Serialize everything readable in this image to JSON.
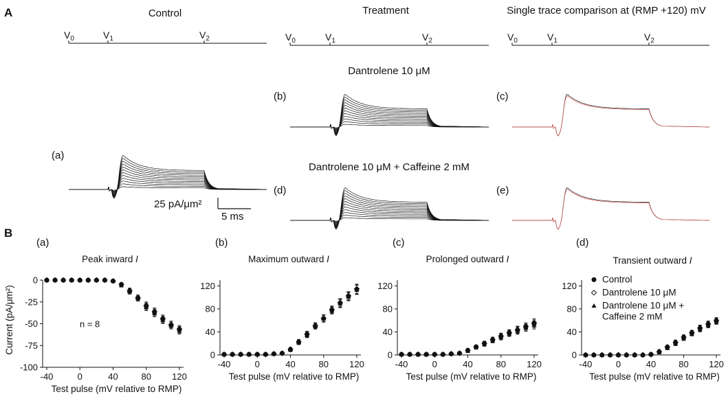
{
  "panel_labels": {
    "A": "A",
    "B": "B"
  },
  "titles": {
    "control": "Control",
    "treatment": "Treatment",
    "comparison": "Single trace comparison at (RMP +120) mV"
  },
  "conditions": {
    "dantrolene": "Dantrolene 10 μM",
    "dantrolene_caffeine": "Dantrolene 10 μM + Caffeine 2 mM"
  },
  "subpanel_tags_A": [
    "(a)",
    "(b)",
    "(c)",
    "(d)",
    "(e)"
  ],
  "protocol": {
    "v0": {
      "main": "V",
      "sub": "0"
    },
    "v1": {
      "main": "V",
      "sub": "1"
    },
    "v2": {
      "main": "V",
      "sub": "2"
    }
  },
  "scale_bar": {
    "current_label": "25 pA/μm²",
    "time_label": "5 ms"
  },
  "colors": {
    "trace": "#111111",
    "overlay": "#d9534f",
    "axis": "#111111"
  },
  "chart_data": [
    {
      "type": "scatter",
      "tag": "(a)",
      "title": "Peak inward",
      "title_var": "I",
      "xlabel": "Test pulse (mV relative to RMP)",
      "ylabel": "Current (pA/μm²)",
      "xlim": [
        -45,
        125
      ],
      "ylim": [
        -100,
        0
      ],
      "xticks": [
        -40,
        0,
        40,
        80,
        120
      ],
      "yticks": [
        0,
        -25,
        -50,
        -75,
        -100
      ],
      "annotation": "n = 8",
      "series": [
        {
          "name": "Control",
          "marker": "circle",
          "x": [
            -40,
            -30,
            -20,
            -10,
            0,
            10,
            20,
            30,
            40,
            50,
            60,
            70,
            80,
            90,
            100,
            110,
            120
          ],
          "y": [
            0,
            0,
            0,
            0,
            0,
            0,
            0,
            0,
            -1,
            -5,
            -13,
            -21,
            -30,
            -37,
            -45,
            -52,
            -57
          ],
          "err": [
            0.5,
            0.5,
            0.5,
            0.5,
            0.5,
            0.5,
            0.5,
            0.5,
            1,
            2,
            3,
            3,
            4,
            4,
            4,
            4,
            4
          ]
        },
        {
          "name": "Dantrolene 10 μM",
          "marker": "diamond",
          "x": [
            -40,
            -30,
            -20,
            -10,
            0,
            10,
            20,
            30,
            40,
            50,
            60,
            70,
            80,
            90,
            100,
            110,
            120
          ],
          "y": [
            0,
            0,
            0,
            0,
            0,
            0,
            0,
            0,
            -1,
            -5,
            -12,
            -20,
            -29,
            -36,
            -44,
            -51,
            -56
          ],
          "err": [
            0.5,
            0.5,
            0.5,
            0.5,
            0.5,
            0.5,
            0.5,
            0.5,
            1,
            2,
            3,
            3,
            4,
            4,
            4,
            4,
            4
          ]
        },
        {
          "name": "Dantrolene 10 μM + Caffeine 2 mM",
          "marker": "triangle",
          "x": [
            -40,
            -30,
            -20,
            -10,
            0,
            10,
            20,
            30,
            40,
            50,
            60,
            70,
            80,
            90,
            100,
            110,
            120
          ],
          "y": [
            0,
            0,
            0,
            0,
            0,
            0,
            0,
            0,
            -1,
            -6,
            -13,
            -21,
            -31,
            -38,
            -46,
            -52,
            -58
          ],
          "err": [
            0.5,
            0.5,
            0.5,
            0.5,
            0.5,
            0.5,
            0.5,
            0.5,
            1,
            2,
            3,
            3,
            4,
            4,
            4,
            4,
            4
          ]
        }
      ]
    },
    {
      "type": "scatter",
      "tag": "(b)",
      "title": "Maximum outward",
      "title_var": "I",
      "xlabel": "Test pulse (mV relative to RMP)",
      "ylabel": "",
      "xlim": [
        -45,
        125
      ],
      "ylim": [
        0,
        130
      ],
      "xticks": [
        -40,
        0,
        40,
        80,
        120
      ],
      "yticks": [
        0,
        40,
        80,
        120
      ],
      "series": [
        {
          "name": "Control",
          "marker": "circle",
          "x": [
            -40,
            -30,
            -20,
            -10,
            0,
            10,
            20,
            30,
            40,
            50,
            60,
            70,
            80,
            90,
            100,
            110,
            120
          ],
          "y": [
            1,
            1,
            1,
            1,
            1,
            1,
            2,
            3,
            9,
            22,
            36,
            50,
            63,
            78,
            90,
            102,
            114
          ],
          "err": [
            1,
            1,
            1,
            1,
            1,
            1,
            1,
            2,
            3,
            4,
            5,
            5,
            6,
            6,
            7,
            7,
            8
          ]
        },
        {
          "name": "Dantrolene 10 μM",
          "marker": "diamond",
          "x": [
            -40,
            -30,
            -20,
            -10,
            0,
            10,
            20,
            30,
            40,
            50,
            60,
            70,
            80,
            90,
            100,
            110,
            120
          ],
          "y": [
            1,
            1,
            1,
            1,
            1,
            1,
            2,
            3,
            10,
            23,
            36,
            51,
            64,
            79,
            91,
            103,
            115
          ],
          "err": [
            1,
            1,
            1,
            1,
            1,
            1,
            1,
            2,
            3,
            4,
            5,
            5,
            6,
            6,
            7,
            7,
            8
          ]
        },
        {
          "name": "Dantrolene 10 μM + Caffeine 2 mM",
          "marker": "triangle",
          "x": [
            -40,
            -30,
            -20,
            -10,
            0,
            10,
            20,
            30,
            40,
            50,
            60,
            70,
            80,
            90,
            100,
            110,
            120
          ],
          "y": [
            1,
            1,
            1,
            1,
            1,
            1,
            2,
            3,
            9,
            22,
            35,
            50,
            63,
            77,
            89,
            101,
            113
          ],
          "err": [
            1,
            1,
            1,
            1,
            1,
            1,
            1,
            2,
            3,
            4,
            5,
            5,
            6,
            6,
            7,
            7,
            8
          ]
        }
      ]
    },
    {
      "type": "scatter",
      "tag": "(c)",
      "title": "Prolonged outward",
      "title_var": "I",
      "xlabel": "Test pulse (mV relative to RMP)",
      "ylabel": "",
      "xlim": [
        -45,
        125
      ],
      "ylim": [
        0,
        130
      ],
      "xticks": [
        -40,
        0,
        40,
        80,
        120
      ],
      "yticks": [
        0,
        40,
        80,
        120
      ],
      "series": [
        {
          "name": "Control",
          "marker": "circle",
          "x": [
            -40,
            -30,
            -20,
            -10,
            0,
            10,
            20,
            30,
            40,
            50,
            60,
            70,
            80,
            90,
            100,
            110,
            120
          ],
          "y": [
            1,
            1,
            1,
            1,
            1,
            1,
            2,
            3,
            8,
            14,
            20,
            26,
            32,
            38,
            43,
            48,
            54
          ],
          "err": [
            1,
            1,
            1,
            1,
            1,
            1,
            1,
            2,
            3,
            3,
            4,
            4,
            5,
            5,
            6,
            6,
            7
          ]
        },
        {
          "name": "Dantrolene 10 μM",
          "marker": "diamond",
          "x": [
            -40,
            -30,
            -20,
            -10,
            0,
            10,
            20,
            30,
            40,
            50,
            60,
            70,
            80,
            90,
            100,
            110,
            120
          ],
          "y": [
            1,
            1,
            1,
            1,
            1,
            1,
            2,
            3,
            8,
            14,
            20,
            27,
            33,
            39,
            44,
            50,
            56
          ],
          "err": [
            1,
            1,
            1,
            1,
            1,
            1,
            1,
            2,
            3,
            3,
            4,
            4,
            5,
            5,
            6,
            6,
            7
          ]
        },
        {
          "name": "Dantrolene 10 μM + Caffeine 2 mM",
          "marker": "triangle",
          "x": [
            -40,
            -30,
            -20,
            -10,
            0,
            10,
            20,
            30,
            40,
            50,
            60,
            70,
            80,
            90,
            100,
            110,
            120
          ],
          "y": [
            1,
            1,
            1,
            1,
            1,
            1,
            2,
            3,
            7,
            13,
            19,
            25,
            31,
            37,
            42,
            47,
            52
          ],
          "err": [
            1,
            1,
            1,
            1,
            1,
            1,
            1,
            2,
            3,
            3,
            4,
            4,
            5,
            5,
            6,
            6,
            7
          ]
        }
      ]
    },
    {
      "type": "scatter",
      "tag": "(d)",
      "title": "Transient outward",
      "title_var": "I",
      "xlabel": "Test pulse (mV relative to RMP)",
      "ylabel": "",
      "xlim": [
        -45,
        125
      ],
      "ylim": [
        0,
        130
      ],
      "xticks": [
        -40,
        0,
        40,
        80,
        120
      ],
      "yticks": [
        0,
        40,
        80,
        120
      ],
      "legend": {
        "placement": "top-left",
        "entries": [
          {
            "marker": "circle",
            "lines": [
              "Control"
            ]
          },
          {
            "marker": "diamond",
            "lines": [
              "Dantrolene 10 μM"
            ]
          },
          {
            "marker": "triangle",
            "lines": [
              "Dantrolene 10 μM +",
              "Caffeine 2 mM"
            ]
          }
        ]
      },
      "series": [
        {
          "name": "Control",
          "marker": "circle",
          "x": [
            -40,
            -30,
            -20,
            -10,
            0,
            10,
            20,
            30,
            40,
            50,
            60,
            70,
            80,
            90,
            100,
            110,
            120
          ],
          "y": [
            0,
            0,
            0,
            0,
            0,
            0,
            0,
            0,
            1,
            5,
            13,
            21,
            30,
            38,
            46,
            53,
            59
          ],
          "err": [
            1,
            1,
            1,
            1,
            1,
            1,
            1,
            1,
            2,
            3,
            3,
            4,
            4,
            4,
            5,
            5,
            5
          ]
        },
        {
          "name": "Dantrolene 10 μM",
          "marker": "diamond",
          "x": [
            -40,
            -30,
            -20,
            -10,
            0,
            10,
            20,
            30,
            40,
            50,
            60,
            70,
            80,
            90,
            100,
            110,
            120
          ],
          "y": [
            0,
            0,
            0,
            0,
            0,
            0,
            0,
            0,
            1,
            6,
            14,
            22,
            31,
            39,
            47,
            54,
            60
          ],
          "err": [
            1,
            1,
            1,
            1,
            1,
            1,
            1,
            1,
            2,
            3,
            3,
            4,
            4,
            4,
            5,
            5,
            5
          ]
        },
        {
          "name": "Dantrolene 10 μM + Caffeine 2 mM",
          "marker": "triangle",
          "x": [
            -40,
            -30,
            -20,
            -10,
            0,
            10,
            20,
            30,
            40,
            50,
            60,
            70,
            80,
            90,
            100,
            110,
            120
          ],
          "y": [
            0,
            0,
            0,
            0,
            0,
            0,
            0,
            0,
            1,
            5,
            12,
            20,
            29,
            37,
            45,
            52,
            58
          ],
          "err": [
            1,
            1,
            1,
            1,
            1,
            1,
            1,
            1,
            2,
            3,
            3,
            4,
            4,
            4,
            5,
            5,
            5
          ]
        }
      ]
    }
  ]
}
